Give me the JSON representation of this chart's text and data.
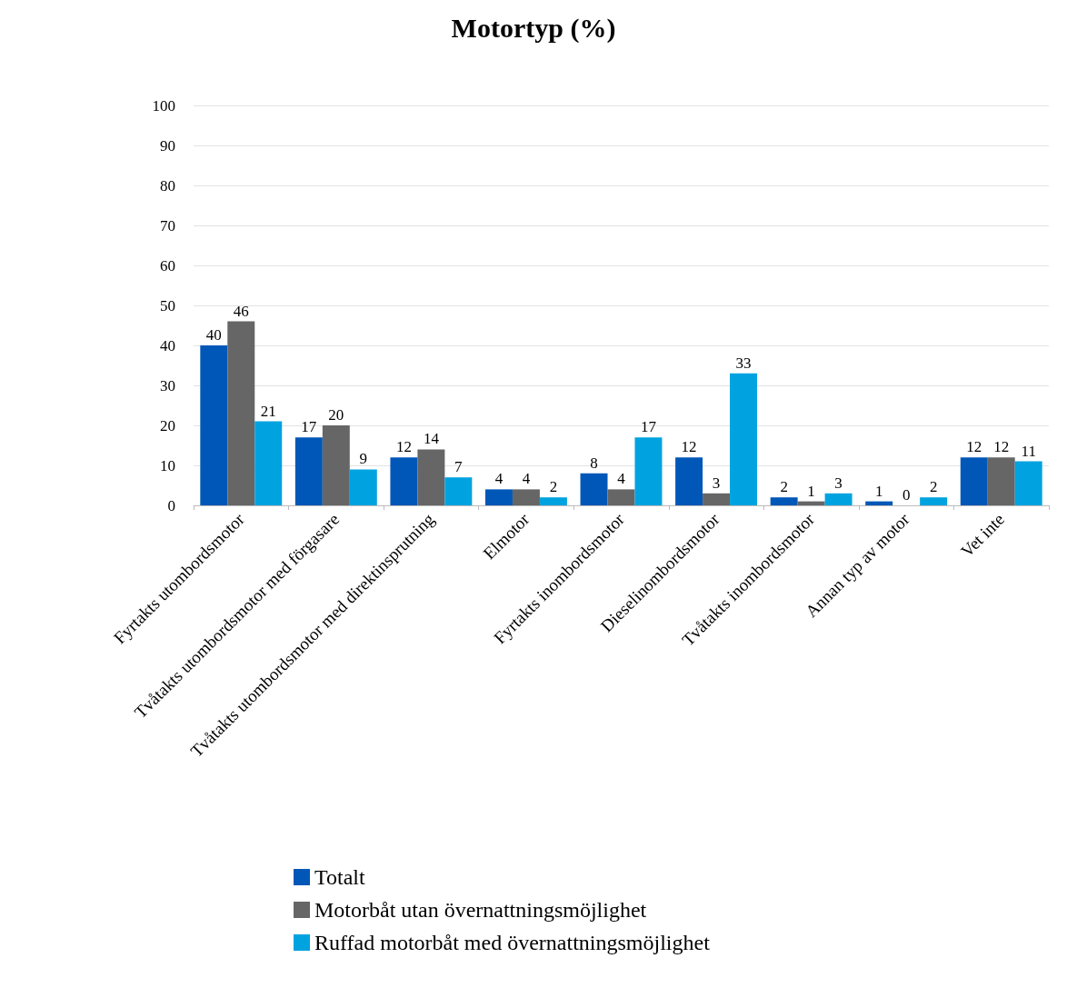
{
  "chart_data": {
    "type": "bar",
    "title": "Motortyp (%)",
    "categories": [
      "Fyrtakts utombordsmotor",
      "Tvåtakts utombordsmotor med förgasare",
      "Tvåtakts utombordsmotor med direktinsprutning",
      "Elmotor",
      "Fyrtakts inombordsmotor",
      "Dieselinombordsmotor",
      "Tvåtakts inombordsmotor",
      "Annan typ av motor",
      "Vet inte"
    ],
    "series": [
      {
        "name": "Totalt",
        "color": "#0057b8",
        "values": [
          40,
          17,
          12,
          4,
          8,
          12,
          2,
          1,
          12
        ]
      },
      {
        "name": "Motorbåt utan övernattningsmöjlighet",
        "color": "#666666",
        "values": [
          46,
          20,
          14,
          4,
          4,
          3,
          1,
          0,
          12
        ]
      },
      {
        "name": "Ruffad motorbåt med övernattningsmöjlighet",
        "color": "#00a3e0",
        "values": [
          21,
          9,
          7,
          2,
          17,
          33,
          3,
          2,
          11
        ]
      }
    ],
    "ylim": [
      0,
      100
    ],
    "yticks": [
      0,
      10,
      20,
      30,
      40,
      50,
      60,
      70,
      80,
      90,
      100
    ],
    "grid": "y",
    "legend": "bottom",
    "data_labels": true
  }
}
